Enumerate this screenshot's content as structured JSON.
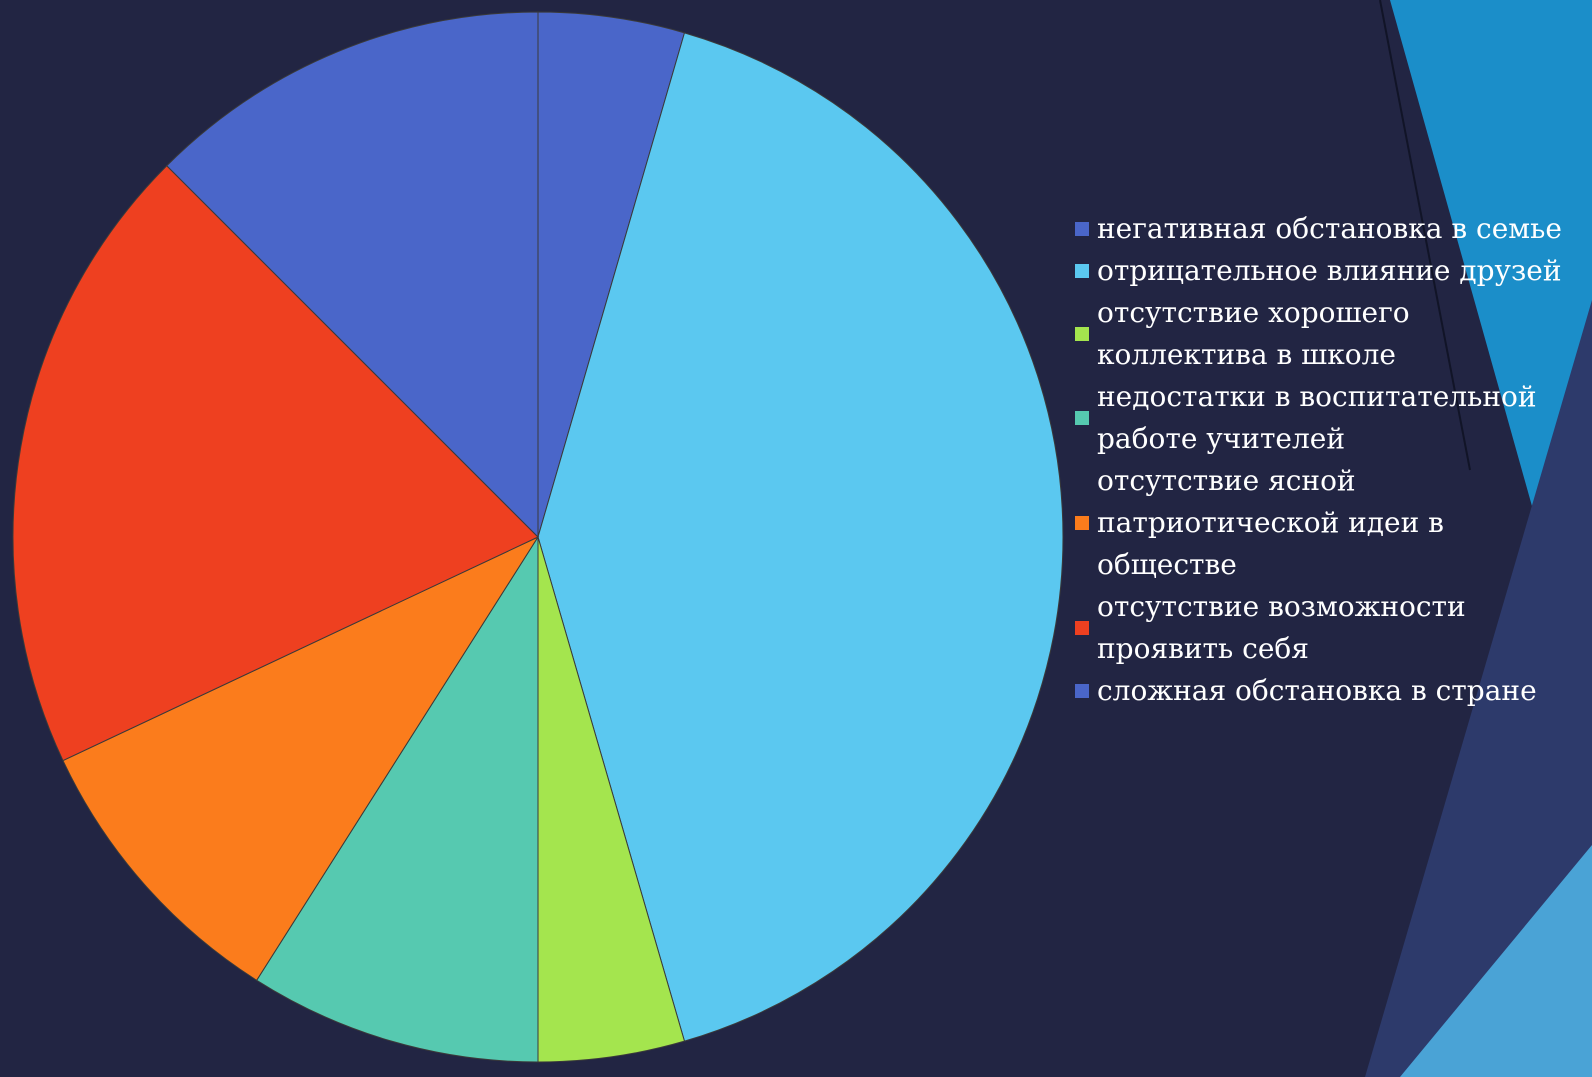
{
  "colors": {
    "background": "#222543",
    "accent_cyan": "#1b8ec9",
    "accent_navy": "#2d3a6b",
    "accent_light": "#4aa3d6"
  },
  "chart_data": {
    "type": "pie",
    "title": "",
    "start_angle_deg": 0,
    "direction": "clockwise",
    "slices": [
      {
        "label": "негативная обстановка в семье",
        "value": 4.5,
        "color": "#4a66c9"
      },
      {
        "label": "отрицательное влияние друзей",
        "value": 41,
        "color": "#5bc8f0"
      },
      {
        "label": "отсутствие хорошего\nколлектива в школе",
        "value": 4.5,
        "color": "#a4e54e"
      },
      {
        "label": "недостатки в воспитательной\nработе учителей",
        "value": 9,
        "color": "#56c9b0"
      },
      {
        "label": "отсутствие ясной\nпатриотической идеи в\nобществе",
        "value": 9,
        "color": "#fb7c1c"
      },
      {
        "label": "отсутствие возможности\nпроявить себя",
        "value": 19.5,
        "color": "#ee4020"
      },
      {
        "label": "сложная обстановка в стране",
        "value": 12.5,
        "color": "#4a66c9"
      }
    ],
    "legend_position": "right"
  }
}
